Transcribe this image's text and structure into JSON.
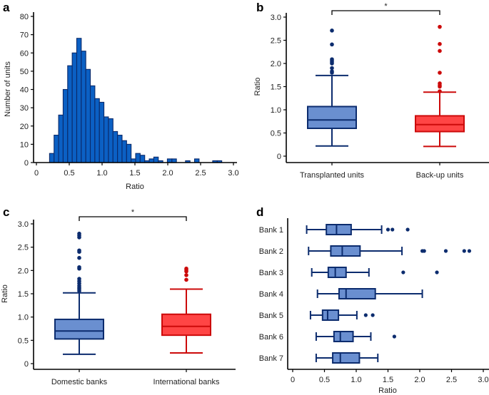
{
  "chart_data": [
    {
      "panel": "a",
      "type": "bar",
      "subtype": "histogram",
      "xlabel": "Ratio",
      "ylabel": "Number of units",
      "xlim": [
        0,
        3.0
      ],
      "ylim": [
        0,
        80
      ],
      "xticks": [
        "0",
        "0.5",
        "1.0",
        "1.5",
        "2.0",
        "2.5",
        "3.0"
      ],
      "xtick_values": [
        0,
        0.5,
        1.0,
        1.5,
        2.0,
        2.5,
        3.0
      ],
      "yticks": [
        "0",
        "10",
        "20",
        "30",
        "40",
        "50",
        "60",
        "70",
        "80"
      ],
      "ytick_values": [
        0,
        10,
        20,
        30,
        40,
        50,
        60,
        70,
        80
      ],
      "bin_start": 0.2,
      "bin_width": 0.069,
      "values": [
        5,
        15,
        26,
        40,
        53,
        60,
        68,
        61,
        51,
        42,
        35,
        33,
        25,
        24,
        17,
        15,
        12,
        10,
        2,
        5,
        4,
        1,
        2,
        3,
        1,
        0,
        2,
        2,
        0,
        0,
        1,
        0,
        2,
        0,
        0,
        0,
        1,
        1
      ],
      "colors": {
        "fill": "#0b60c4",
        "stroke": "#0a2a6b"
      }
    },
    {
      "panel": "b",
      "type": "boxplot",
      "ylabel": "Ratio",
      "ylim": [
        0,
        3.0
      ],
      "yticks": [
        "0",
        "0.5",
        "1.0",
        "1.5",
        "2.0",
        "2.5",
        "3.0"
      ],
      "ytick_values": [
        0,
        0.5,
        1.0,
        1.5,
        2.0,
        2.5,
        3.0
      ],
      "significance": "*",
      "groups": [
        {
          "name": "Transplanted units",
          "min": 0.22,
          "q1": 0.6,
          "median": 0.78,
          "q3": 1.07,
          "max": 1.74,
          "outliers": [
            1.8,
            1.83,
            1.9,
            2.0,
            2.03,
            2.06,
            2.09,
            2.41,
            2.71
          ],
          "fill": "#6a8fd0",
          "stroke": "#0c2c6e"
        },
        {
          "name": "Back-up units",
          "min": 0.21,
          "q1": 0.53,
          "median": 0.68,
          "q3": 0.87,
          "max": 1.38,
          "outliers": [
            1.4,
            1.5,
            1.53,
            1.57,
            1.8,
            2.27,
            2.42,
            2.79
          ],
          "fill": "#ff4545",
          "stroke": "#cc0a0a"
        }
      ]
    },
    {
      "panel": "c",
      "type": "boxplot",
      "ylabel": "Ratio",
      "ylim": [
        0,
        3.0
      ],
      "yticks": [
        "0",
        "0.5",
        "1.0",
        "1.5",
        "2.0",
        "2.5",
        "3.0"
      ],
      "ytick_values": [
        0,
        0.5,
        1.0,
        1.5,
        2.0,
        2.5,
        3.0
      ],
      "significance": "*",
      "groups": [
        {
          "name": "Domestic banks",
          "min": 0.2,
          "q1": 0.53,
          "median": 0.7,
          "q3": 0.95,
          "max": 1.52,
          "outliers": [
            1.56,
            1.6,
            1.63,
            1.67,
            1.72,
            1.77,
            1.82,
            2.04,
            2.07,
            2.27,
            2.4,
            2.43,
            2.71,
            2.75,
            2.79
          ],
          "fill": "#6a8fd0",
          "stroke": "#0c2c6e"
        },
        {
          "name": "International banks",
          "min": 0.23,
          "q1": 0.61,
          "median": 0.8,
          "q3": 1.06,
          "max": 1.6,
          "outliers": [
            1.8,
            1.9,
            1.98,
            2.01,
            2.04
          ],
          "fill": "#ff4545",
          "stroke": "#cc0a0a"
        }
      ]
    },
    {
      "panel": "d",
      "type": "boxplot",
      "orientation": "horizontal",
      "xlabel": "Ratio",
      "xlim": [
        0,
        3.0
      ],
      "xticks": [
        "0",
        "0.5",
        "1.0",
        "1.5",
        "2.0",
        "2.5",
        "3.0"
      ],
      "xtick_values": [
        0,
        0.5,
        1.0,
        1.5,
        2.0,
        2.5,
        3.0
      ],
      "fill": "#6a8fd0",
      "stroke": "#0c2c6e",
      "groups": [
        {
          "name": "Bank 1",
          "min": 0.22,
          "q1": 0.53,
          "median": 0.69,
          "q3": 0.92,
          "max": 1.4,
          "outliers": [
            1.5,
            1.57,
            1.81
          ]
        },
        {
          "name": "Bank 2",
          "min": 0.25,
          "q1": 0.6,
          "median": 0.78,
          "q3": 1.06,
          "max": 1.72,
          "outliers": [
            2.04,
            2.07,
            2.41,
            2.7,
            2.78
          ]
        },
        {
          "name": "Bank 3",
          "min": 0.3,
          "q1": 0.56,
          "median": 0.67,
          "q3": 0.84,
          "max": 1.2,
          "outliers": [
            1.74,
            2.27
          ]
        },
        {
          "name": "Bank 4",
          "min": 0.39,
          "q1": 0.73,
          "median": 0.84,
          "q3": 1.3,
          "max": 2.04,
          "outliers": []
        },
        {
          "name": "Bank 5",
          "min": 0.28,
          "q1": 0.47,
          "median": 0.55,
          "q3": 0.72,
          "max": 1.01,
          "outliers": [
            1.15,
            1.26
          ]
        },
        {
          "name": "Bank 6",
          "min": 0.37,
          "q1": 0.65,
          "median": 0.75,
          "q3": 0.95,
          "max": 1.23,
          "outliers": [
            1.6
          ]
        },
        {
          "name": "Bank 7",
          "min": 0.37,
          "q1": 0.63,
          "median": 0.75,
          "q3": 1.05,
          "max": 1.34,
          "outliers": []
        }
      ]
    }
  ],
  "panels": {
    "a": "a",
    "b": "b",
    "c": "c",
    "d": "d"
  }
}
